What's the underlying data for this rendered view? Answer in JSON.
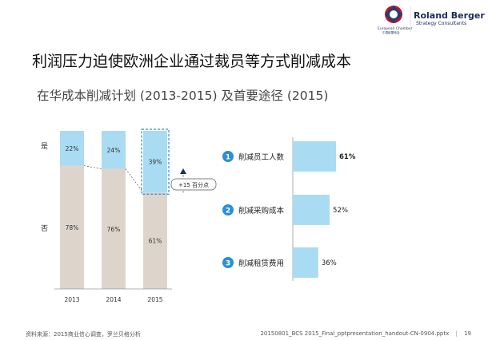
{
  "header": {
    "brand": "Roland Berger",
    "brand_sub": "Strategy Consultants",
    "chamber": "European Chamber",
    "chamber_cn": "中国欧盟商会"
  },
  "title": "利润压力迫使欧洲企业通过裁员等方式削减成本",
  "subtitle": "在华成本削减计划 (2013-2015) 及首要途径 (2015)",
  "footer": {
    "source": "资料来源：2015商业信心调查，罗兰贝格分析",
    "file": "20150801_BCS 2015_Final_pptpresentation_handout-CN-0904.pptx",
    "page": "19"
  },
  "chart_data": [
    {
      "type": "bar",
      "stacked": true,
      "categories": [
        "2013",
        "2014",
        "2015"
      ],
      "row_labels": [
        "是",
        "否"
      ],
      "series": [
        {
          "name": "是",
          "values": [
            22,
            24,
            39
          ],
          "labels": [
            "22%",
            "24%",
            "39%"
          ],
          "color": "#a9dcf2"
        },
        {
          "name": "否",
          "values": [
            78,
            76,
            61
          ],
          "labels": [
            "78%",
            "76%",
            "61%"
          ],
          "color": "#ddd5cc"
        }
      ],
      "ylim": [
        0,
        100
      ],
      "annotation": "+15 百分点",
      "highlight_category": "2015"
    },
    {
      "type": "bar",
      "orientation": "horizontal",
      "categories": [
        "削减员工人数",
        "削减采购成本",
        "削减租赁费用"
      ],
      "ranks": [
        "1",
        "2",
        "3"
      ],
      "values": [
        61,
        52,
        36
      ],
      "labels": [
        "61%",
        "52%",
        "36%"
      ],
      "bold_first_label": true,
      "color": "#a9dcf2",
      "badge_color": "#2a8fd6"
    }
  ]
}
